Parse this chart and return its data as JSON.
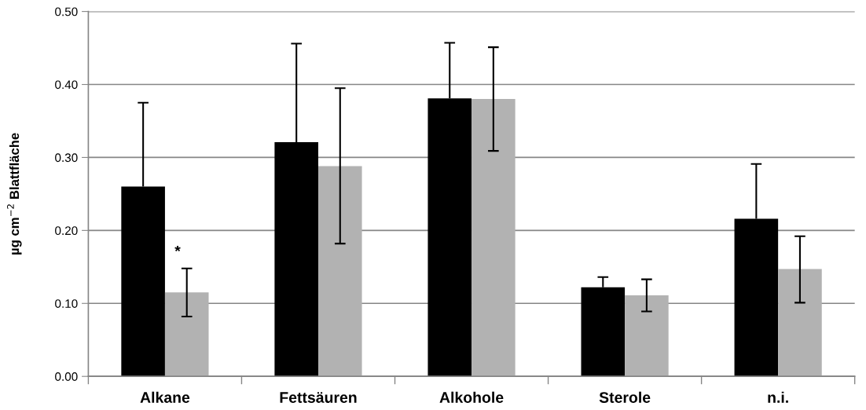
{
  "chart_data": {
    "type": "bar",
    "ylabel": "µg cm$^{−2}$ Blattfläche",
    "categories": [
      "Alkane",
      "Fettsäuren",
      "Alkohole",
      "Sterole",
      "n.i."
    ],
    "series": [
      {
        "color": "#000000",
        "values": [
          0.26,
          0.321,
          0.381,
          0.122,
          0.216
        ],
        "errors": [
          [
            0.26,
            0.375
          ],
          [
            0.321,
            0.456
          ],
          [
            0.381,
            0.457
          ],
          [
            0.122,
            0.136
          ],
          [
            0.216,
            0.291
          ]
        ]
      },
      {
        "color": "#b2b2b2",
        "values": [
          0.115,
          0.288,
          0.38,
          0.111,
          0.147
        ],
        "errors": [
          [
            0.082,
            0.148
          ],
          [
            0.182,
            0.395
          ],
          [
            0.309,
            0.451
          ],
          [
            0.089,
            0.133
          ],
          [
            0.101,
            0.192
          ]
        ]
      }
    ],
    "annotations": [
      {
        "text": "*",
        "x": "Alkane",
        "y": 0.17
      }
    ],
    "ylim": [
      0,
      0.5
    ],
    "yticks": [
      {
        "value": 0,
        "label": "0.00"
      },
      {
        "value": 0.1,
        "label": "0.10"
      },
      {
        "value": 0.2,
        "label": "0.20"
      },
      {
        "value": 0.3,
        "label": "0.30"
      },
      {
        "value": 0.4,
        "label": "0.40"
      },
      {
        "value": 0.5,
        "label": "0.50"
      }
    ],
    "grid": "y"
  }
}
